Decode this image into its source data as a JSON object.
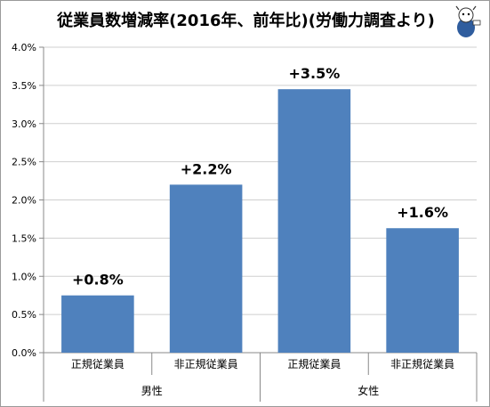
{
  "chart_data": {
    "type": "bar",
    "title": "従業員数増減率(2016年、前年比)(労働力調査より)",
    "categories": [
      "正規従業員",
      "非正規従業員",
      "正規従業員",
      "非正規従業員"
    ],
    "groups": [
      {
        "label": "男性",
        "span": 2
      },
      {
        "label": "女性",
        "span": 2
      }
    ],
    "values": [
      0.75,
      2.2,
      3.45,
      1.63
    ],
    "data_labels": [
      "+0.8%",
      "+2.2%",
      "+3.5%",
      "+1.6%"
    ],
    "ylim": [
      0,
      4
    ],
    "ytick_labels": [
      "0.0%",
      "0.5%",
      "1.0%",
      "1.5%",
      "2.0%",
      "2.5%",
      "3.0%",
      "3.5%",
      "4.0%"
    ],
    "grid": true,
    "xlabel": "",
    "ylabel": "",
    "bar_color": "#4f81bd"
  }
}
